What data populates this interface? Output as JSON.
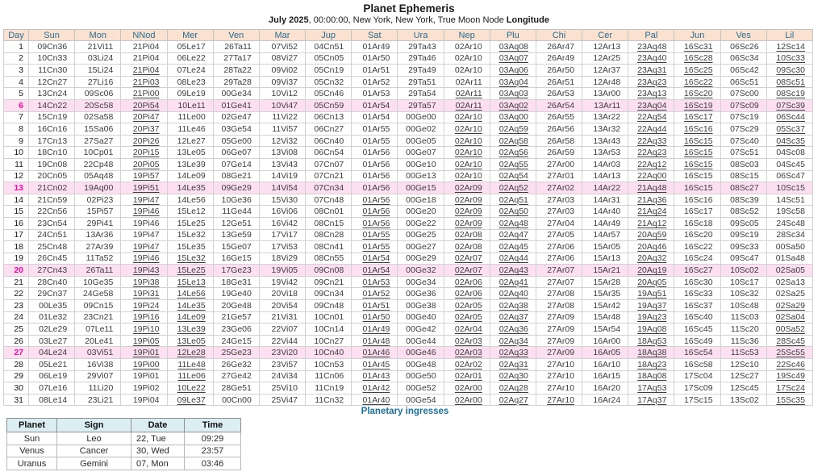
{
  "title": "Planet Ephemeris",
  "subtitle": {
    "bold_month": "July 2025",
    "rest": ", 00:00:00, New York, New York, True Moon Node ",
    "bold_end": "Longitude"
  },
  "colors": {
    "header_bg": "#fbe1cf",
    "header_text": "#256e96",
    "highlight_row_bg": "#fcdff0",
    "highlight_day_text": "#ee0d9e",
    "ingress_header_bg": "#daeef3",
    "ingress_label_text": "#19729e"
  },
  "ephemeris": {
    "columns": [
      "Day",
      "Sun",
      "Mon",
      "NNod",
      "Mer",
      "Ven",
      "Mar",
      "Jup",
      "Sat",
      "Ura",
      "Nep",
      "Plu",
      "Chi",
      "Cer",
      "Pal",
      "Jun",
      "Ves",
      "Lil"
    ],
    "highlighted_days": [
      6,
      13,
      20,
      27
    ],
    "rows": [
      {
        "day": 1,
        "values": [
          "09Cn36",
          "21Vi11",
          "21Pi04",
          "05Le17",
          "26Ta11",
          "07Vi52",
          "04Cn51",
          "01Ar49",
          "29Ta43",
          "02Ar10",
          "03Aq08",
          "26Ar47",
          "12Ar13",
          "23Aq48",
          "16Sc31",
          "06Sc26",
          "12Sc14"
        ],
        "underlined": [
          10,
          13,
          14,
          16
        ]
      },
      {
        "day": 2,
        "values": [
          "10Cn33",
          "03Li24",
          "21Pi04",
          "06Le22",
          "27Ta17",
          "08Vi27",
          "05Cn05",
          "01Ar50",
          "29Ta46",
          "02Ar10",
          "03Aq07",
          "26Ar49",
          "12Ar25",
          "23Aq40",
          "16Sc28",
          "06Sc34",
          "10Sc33"
        ],
        "underlined": [
          10,
          13,
          14,
          16
        ]
      },
      {
        "day": 3,
        "values": [
          "11Cn30",
          "15Li24",
          "21Pi04",
          "07Le24",
          "28Ta22",
          "09Vi02",
          "05Cn19",
          "01Ar51",
          "29Ta49",
          "02Ar10",
          "03Aq06",
          "26Ar50",
          "12Ar37",
          "23Aq31",
          "16Sc25",
          "06Sc42",
          "09Sc30"
        ],
        "underlined": [
          2,
          10,
          13,
          14,
          16
        ]
      },
      {
        "day": 4,
        "values": [
          "12Cn27",
          "27Li16",
          "21Pi03",
          "08Le23",
          "29Ta28",
          "09Vi37",
          "05Cn32",
          "01Ar52",
          "29Ta51",
          "02Ar11",
          "03Aq04",
          "26Ar51",
          "12Ar48",
          "23Aq23",
          "16Sc22",
          "06Sc51",
          "08Sc51"
        ],
        "underlined": [
          2,
          10,
          13,
          14,
          16
        ]
      },
      {
        "day": 5,
        "values": [
          "13Cn24",
          "09Sc06",
          "21Pi00",
          "09Le19",
          "00Ge34",
          "10Vi12",
          "05Cn46",
          "01Ar53",
          "29Ta54",
          "02Ar11",
          "03Aq03",
          "26Ar53",
          "13Ar00",
          "23Aq13",
          "16Sc20",
          "07Sc00",
          "08Sc19"
        ],
        "underlined": [
          2,
          9,
          10,
          13,
          14,
          16
        ]
      },
      {
        "day": 6,
        "values": [
          "14Cn22",
          "20Sc58",
          "20Pi54",
          "10Le11",
          "01Ge41",
          "10Vi47",
          "05Cn59",
          "01Ar54",
          "29Ta57",
          "02Ar11",
          "03Aq02",
          "26Ar54",
          "13Ar11",
          "23Aq04",
          "16Sc19",
          "07Sc09",
          "07Sc39"
        ],
        "underlined": [
          2,
          9,
          10,
          13,
          14,
          16
        ]
      },
      {
        "day": 7,
        "values": [
          "15Cn19",
          "02Sa58",
          "20Pi47",
          "11Le00",
          "02Ge47",
          "11Vi22",
          "06Cn13",
          "01Ar54",
          "00Ge00",
          "02Ar10",
          "03Aq00",
          "26Ar55",
          "13Ar22",
          "22Aq54",
          "16Sc17",
          "07Sc19",
          "06Sc44"
        ],
        "underlined": [
          2,
          9,
          10,
          13,
          14,
          16
        ]
      },
      {
        "day": 8,
        "values": [
          "16Cn16",
          "15Sa06",
          "20Pi37",
          "11Le46",
          "03Ge54",
          "11Vi57",
          "06Cn27",
          "01Ar55",
          "00Ge02",
          "02Ar10",
          "02Aq59",
          "26Ar56",
          "13Ar32",
          "22Aq44",
          "16Sc16",
          "07Sc29",
          "05Sc37"
        ],
        "underlined": [
          2,
          9,
          10,
          13,
          14,
          16
        ]
      },
      {
        "day": 9,
        "values": [
          "17Cn13",
          "27Sa27",
          "20Pi26",
          "12Le27",
          "05Ge00",
          "12Vi32",
          "06Cn40",
          "01Ar55",
          "00Ge05",
          "02Ar10",
          "02Aq58",
          "26Ar58",
          "13Ar43",
          "22Aq33",
          "16Sc15",
          "07Sc40",
          "04Sc35"
        ],
        "underlined": [
          2,
          9,
          10,
          13,
          14,
          16
        ]
      },
      {
        "day": 10,
        "values": [
          "18Cn10",
          "10Cp01",
          "20Pi15",
          "13Le05",
          "06Ge07",
          "13Vi08",
          "06Cn54",
          "01Ar56",
          "00Ge07",
          "02Ar10",
          "02Aq56",
          "26Ar59",
          "13Ar53",
          "22Aq23",
          "16Sc15",
          "07Sc51",
          "04Sc08"
        ],
        "underlined": [
          2,
          9,
          10,
          13,
          14
        ]
      },
      {
        "day": 11,
        "values": [
          "19Cn08",
          "22Cp48",
          "20Pi05",
          "13Le39",
          "07Ge14",
          "13Vi43",
          "07Cn07",
          "01Ar56",
          "00Ge10",
          "02Ar10",
          "02Aq55",
          "27Ar00",
          "14Ar03",
          "22Aq12",
          "16Sc15",
          "08Sc03",
          "04Sc45"
        ],
        "underlined": [
          2,
          9,
          10,
          13,
          14
        ]
      },
      {
        "day": 12,
        "values": [
          "20Cn05",
          "05Aq48",
          "19Pi57",
          "14Le09",
          "08Ge21",
          "14Vi19",
          "07Cn21",
          "01Ar56",
          "00Ge13",
          "02Ar10",
          "02Aq54",
          "27Ar01",
          "14Ar13",
          "22Aq00",
          "16Sc15",
          "08Sc15",
          "06Sc47"
        ],
        "underlined": [
          2,
          9,
          10,
          13
        ]
      },
      {
        "day": 13,
        "values": [
          "21Cn02",
          "19Aq00",
          "19Pi51",
          "14Le35",
          "09Ge29",
          "14Vi54",
          "07Cn34",
          "01Ar56",
          "00Ge15",
          "02Ar09",
          "02Aq52",
          "27Ar02",
          "14Ar22",
          "21Aq48",
          "16Sc15",
          "08Sc27",
          "10Sc15"
        ],
        "underlined": [
          2,
          9,
          10,
          13
        ]
      },
      {
        "day": 14,
        "values": [
          "21Cn59",
          "02Pi23",
          "19Pi47",
          "14Le56",
          "10Ge36",
          "15Vi30",
          "07Cn48",
          "01Ar56",
          "00Ge18",
          "02Ar09",
          "02Aq51",
          "27Ar03",
          "14Ar31",
          "21Aq36",
          "16Sc16",
          "08Sc39",
          "14Sc51"
        ],
        "underlined": [
          2,
          7,
          9,
          10,
          13
        ]
      },
      {
        "day": 15,
        "values": [
          "22Cn56",
          "15Pi57",
          "19Pi46",
          "15Le12",
          "11Ge44",
          "16Vi06",
          "08Cn01",
          "01Ar56",
          "00Ge20",
          "02Ar09",
          "02Aq50",
          "27Ar03",
          "14Ar40",
          "21Aq24",
          "16Sc17",
          "08Sc52",
          "19Sc58"
        ],
        "underlined": [
          2,
          7,
          9,
          10,
          13
        ]
      },
      {
        "day": 16,
        "values": [
          "23Cn54",
          "29Pi41",
          "19Pi46",
          "15Le25",
          "12Ge51",
          "16Vi42",
          "08Cn15",
          "01Ar56",
          "00Ge22",
          "02Ar09",
          "02Aq48",
          "27Ar04",
          "14Ar49",
          "21Aq12",
          "16Sc18",
          "09Sc05",
          "24Sc48"
        ],
        "underlined": [
          7,
          9,
          10,
          13
        ]
      },
      {
        "day": 17,
        "values": [
          "24Cn51",
          "13Ar36",
          "19Pi47",
          "15Le32",
          "13Ge59",
          "17Vi17",
          "08Cn28",
          "01Ar55",
          "00Ge25",
          "02Ar08",
          "02Aq47",
          "27Ar05",
          "14Ar57",
          "20Aq59",
          "16Sc20",
          "09Sc19",
          "28Sc34"
        ],
        "underlined": [
          7,
          9,
          10,
          13
        ]
      },
      {
        "day": 18,
        "values": [
          "25Cn48",
          "27Ar39",
          "19Pi47",
          "15Le35",
          "15Ge07",
          "17Vi53",
          "08Cn41",
          "01Ar55",
          "00Ge27",
          "02Ar08",
          "02Aq45",
          "27Ar06",
          "15Ar05",
          "20Aq46",
          "16Sc22",
          "09Sc33",
          "00Sa50"
        ],
        "underlined": [
          2,
          7,
          9,
          10,
          13
        ]
      },
      {
        "day": 19,
        "values": [
          "26Cn45",
          "11Ta52",
          "19Pi46",
          "15Le32",
          "16Ge15",
          "18Vi29",
          "08Cn55",
          "01Ar54",
          "00Ge29",
          "02Ar07",
          "02Aq44",
          "27Ar06",
          "15Ar13",
          "20Aq32",
          "16Sc24",
          "09Sc47",
          "01Sa48"
        ],
        "underlined": [
          2,
          3,
          7,
          9,
          10,
          13
        ]
      },
      {
        "day": 20,
        "values": [
          "27Cn43",
          "26Ta11",
          "19Pi43",
          "15Le25",
          "17Ge23",
          "19Vi05",
          "09Cn08",
          "01Ar54",
          "00Ge32",
          "02Ar07",
          "02Aq43",
          "27Ar07",
          "15Ar21",
          "20Aq19",
          "16Sc27",
          "10Sc02",
          "02Sa05"
        ],
        "underlined": [
          2,
          3,
          7,
          9,
          10,
          13
        ]
      },
      {
        "day": 21,
        "values": [
          "28Cn40",
          "10Ge35",
          "19Pi38",
          "15Le13",
          "18Ge31",
          "19Vi42",
          "09Cn21",
          "01Ar53",
          "00Ge34",
          "02Ar06",
          "02Aq41",
          "27Ar07",
          "15Ar28",
          "20Aq05",
          "16Sc30",
          "10Sc17",
          "02Sa13"
        ],
        "underlined": [
          2,
          3,
          7,
          9,
          10,
          13
        ]
      },
      {
        "day": 22,
        "values": [
          "29Cn37",
          "24Ge58",
          "19Pi31",
          "14Le56",
          "19Ge40",
          "20Vi18",
          "09Cn34",
          "01Ar52",
          "00Ge36",
          "02Ar06",
          "02Aq40",
          "27Ar08",
          "15Ar35",
          "19Aq51",
          "16Sc33",
          "10Sc32",
          "02Sa25"
        ],
        "underlined": [
          2,
          3,
          7,
          9,
          10,
          13
        ]
      },
      {
        "day": 23,
        "values": [
          "00Le35",
          "09Cn15",
          "19Pi24",
          "14Le35",
          "20Ge48",
          "20Vi54",
          "09Cn48",
          "01Ar51",
          "00Ge38",
          "02Ar05",
          "02Aq38",
          "27Ar08",
          "15Ar42",
          "19Aq37",
          "16Sc37",
          "10Sc48",
          "02Sa29"
        ],
        "underlined": [
          2,
          3,
          7,
          9,
          10,
          13,
          16
        ]
      },
      {
        "day": 24,
        "values": [
          "01Le32",
          "23Cn21",
          "19Pi16",
          "14Le09",
          "21Ge57",
          "21Vi31",
          "10Cn01",
          "01Ar50",
          "00Ge40",
          "02Ar05",
          "02Aq37",
          "27Ar09",
          "15Ar48",
          "19Aq23",
          "16Sc40",
          "11Sc03",
          "02Sa04"
        ],
        "underlined": [
          2,
          3,
          7,
          9,
          10,
          13,
          16
        ]
      },
      {
        "day": 25,
        "values": [
          "02Le29",
          "07Le11",
          "19Pi10",
          "13Le39",
          "23Ge06",
          "22Vi07",
          "10Cn14",
          "01Ar49",
          "00Ge42",
          "02Ar04",
          "02Aq36",
          "27Ar09",
          "15Ar54",
          "19Aq08",
          "16Sc45",
          "11Sc20",
          "00Sa52"
        ],
        "underlined": [
          2,
          3,
          7,
          9,
          10,
          13,
          16
        ]
      },
      {
        "day": 26,
        "values": [
          "03Le27",
          "20Le41",
          "19Pi05",
          "13Le05",
          "24Ge15",
          "22Vi44",
          "10Cn27",
          "01Ar48",
          "00Ge44",
          "02Ar03",
          "02Aq34",
          "27Ar09",
          "16Ar00",
          "18Aq53",
          "16Sc49",
          "11Sc36",
          "28Sc45"
        ],
        "underlined": [
          2,
          3,
          7,
          9,
          10,
          13,
          16
        ]
      },
      {
        "day": 27,
        "values": [
          "04Le24",
          "03Vi51",
          "19Pi01",
          "12Le28",
          "25Ge23",
          "23Vi20",
          "10Cn40",
          "01Ar46",
          "00Ge46",
          "02Ar03",
          "02Aq33",
          "27Ar09",
          "16Ar05",
          "18Aq38",
          "16Sc54",
          "11Sc53",
          "25Sc55"
        ],
        "underlined": [
          2,
          3,
          7,
          9,
          10,
          13,
          16
        ]
      },
      {
        "day": 28,
        "values": [
          "05Le21",
          "16Vi38",
          "19Pi00",
          "11Le48",
          "26Ge32",
          "23Vi57",
          "10Cn53",
          "01Ar45",
          "00Ge48",
          "02Ar02",
          "02Aq31",
          "27Ar10",
          "16Ar10",
          "18Aq23",
          "16Sc58",
          "12Sc10",
          "22Sc46"
        ],
        "underlined": [
          2,
          3,
          7,
          9,
          10,
          13,
          16
        ]
      },
      {
        "day": 29,
        "values": [
          "06Le19",
          "29Vi07",
          "19Pi01",
          "11Le06",
          "27Ge42",
          "24Vi34",
          "11Cn06",
          "01Ar43",
          "00Ge50",
          "02Ar01",
          "02Aq30",
          "27Ar10",
          "16Ar15",
          "18Aq08",
          "17Sc04",
          "12Sc27",
          "19Sc49"
        ],
        "underlined": [
          3,
          7,
          9,
          10,
          13,
          16
        ]
      },
      {
        "day": 30,
        "values": [
          "07Le16",
          "11Li20",
          "19Pi02",
          "10Le22",
          "28Ge51",
          "25Vi10",
          "11Cn19",
          "01Ar42",
          "00Ge52",
          "02Ar00",
          "02Aq28",
          "27Ar10",
          "16Ar20",
          "17Aq53",
          "17Sc09",
          "12Sc45",
          "17Sc24"
        ],
        "underlined": [
          3,
          7,
          9,
          10,
          13,
          16
        ]
      },
      {
        "day": 31,
        "values": [
          "08Le14",
          "23Li21",
          "19Pi04",
          "09Le37",
          "00Cn00",
          "25Vi47",
          "11Cn32",
          "01Ar40",
          "00Ge54",
          "02Ar00",
          "02Aq27",
          "27Ar10",
          "16Ar24",
          "17Aq37",
          "17Sc15",
          "13Sc02",
          "15Sc35"
        ],
        "underlined": [
          3,
          7,
          9,
          10,
          11,
          13,
          16
        ]
      }
    ]
  },
  "ingresses": {
    "label": "Planetary ingresses",
    "columns": [
      "Planet",
      "Sign",
      "Date",
      "Time"
    ],
    "rows": [
      {
        "planet": "Sun",
        "sign": "Leo",
        "date": "22, Tue",
        "time": "09:29"
      },
      {
        "planet": "Venus",
        "sign": "Cancer",
        "date": "30, Wed",
        "time": "23:57"
      },
      {
        "planet": "Uranus",
        "sign": "Gemini",
        "date": "07, Mon",
        "time": "03:46"
      }
    ]
  }
}
